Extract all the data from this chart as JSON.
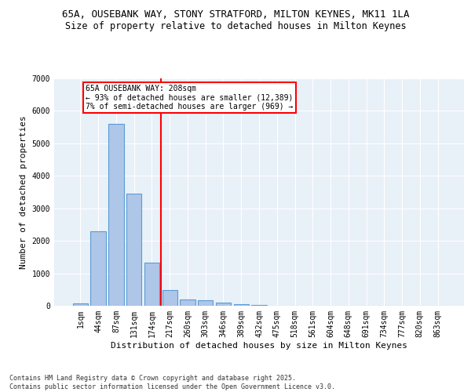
{
  "title_line1": "65A, OUSEBANK WAY, STONY STRATFORD, MILTON KEYNES, MK11 1LA",
  "title_line2": "Size of property relative to detached houses in Milton Keynes",
  "xlabel": "Distribution of detached houses by size in Milton Keynes",
  "ylabel": "Number of detached properties",
  "categories": [
    "1sqm",
    "44sqm",
    "87sqm",
    "131sqm",
    "174sqm",
    "217sqm",
    "260sqm",
    "303sqm",
    "346sqm",
    "389sqm",
    "432sqm",
    "475sqm",
    "518sqm",
    "561sqm",
    "604sqm",
    "648sqm",
    "691sqm",
    "734sqm",
    "777sqm",
    "820sqm",
    "863sqm"
  ],
  "values": [
    70,
    2300,
    5600,
    3450,
    1320,
    490,
    200,
    170,
    85,
    45,
    20,
    8,
    4,
    2,
    1,
    1,
    0,
    0,
    0,
    0,
    0
  ],
  "bar_color": "#aec6e8",
  "bar_edge_color": "#5b9bd5",
  "vline_color": "red",
  "annotation_title": "65A OUSEBANK WAY: 208sqm",
  "annotation_line1": "← 93% of detached houses are smaller (12,389)",
  "annotation_line2": "7% of semi-detached houses are larger (969) →",
  "ylim": [
    0,
    7000
  ],
  "yticks": [
    0,
    1000,
    2000,
    3000,
    4000,
    5000,
    6000,
    7000
  ],
  "bg_color": "#e8f0f8",
  "footer_line1": "Contains HM Land Registry data © Crown copyright and database right 2025.",
  "footer_line2": "Contains public sector information licensed under the Open Government Licence v3.0."
}
